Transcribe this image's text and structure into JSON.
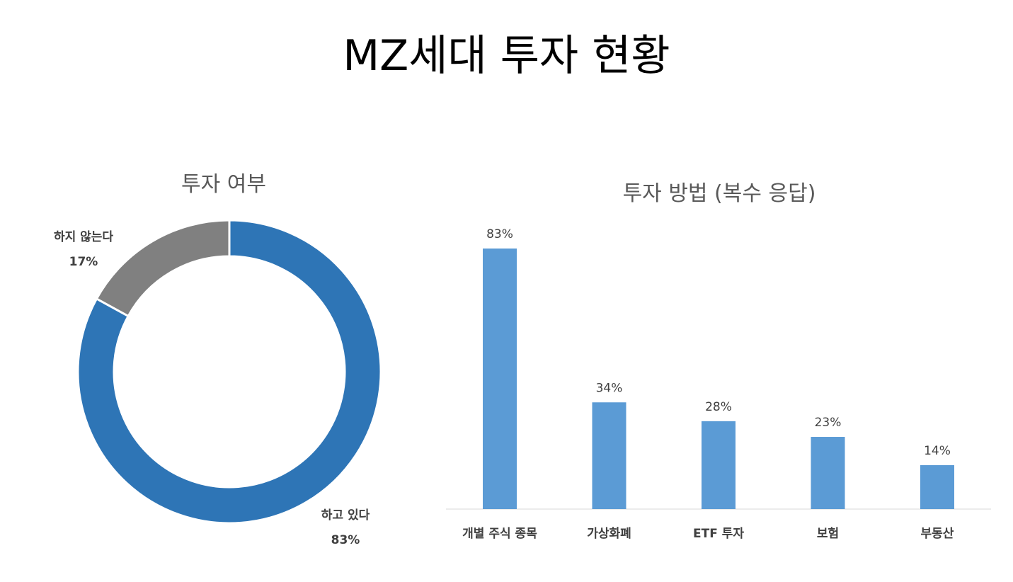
{
  "page": {
    "title": "MZ세대 투자 현황"
  },
  "chart_data": [
    {
      "type": "pie",
      "style": "donut",
      "title": "투자 여부",
      "slices": [
        {
          "label": "하고 있다",
          "value": 83,
          "value_label": "83%",
          "color": "#2E75B6"
        },
        {
          "label": "하지 않는다",
          "value": 17,
          "value_label": "17%",
          "color": "#808080"
        }
      ],
      "legend": "none"
    },
    {
      "type": "bar",
      "title": "투자 방법 (복수 응답)",
      "categories": [
        "개별 주식 종목",
        "가상화폐",
        "ETF 투자",
        "보험",
        "부동산"
      ],
      "values": [
        83,
        34,
        28,
        23,
        14
      ],
      "value_labels": [
        "83%",
        "34%",
        "28%",
        "23%",
        "14%"
      ],
      "unit": "%",
      "ylim": [
        0,
        90
      ],
      "grid": false,
      "color": "#5B9BD5"
    }
  ]
}
